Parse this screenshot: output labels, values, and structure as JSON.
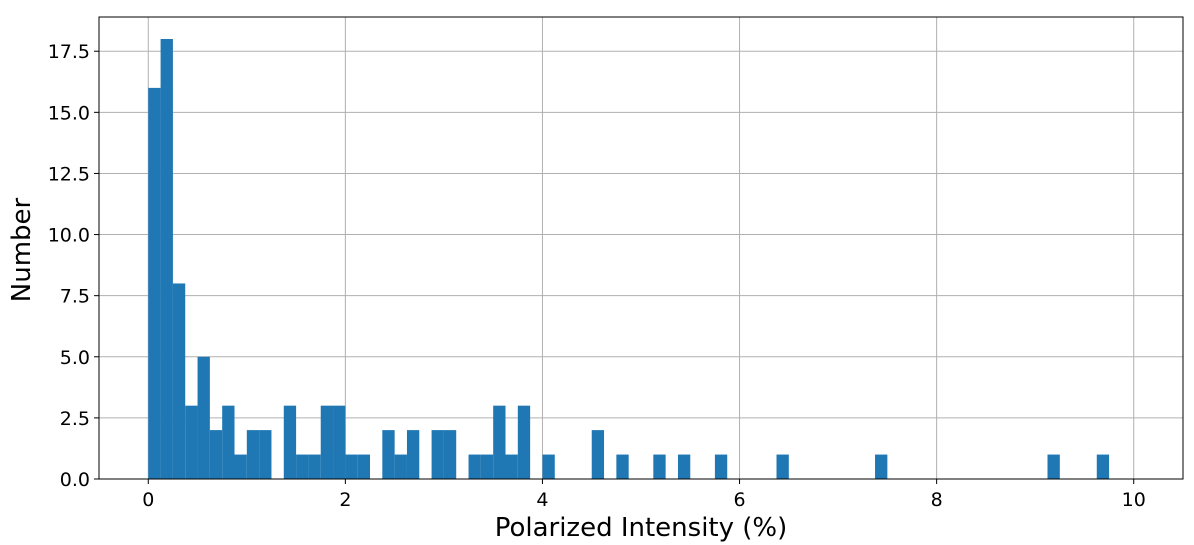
{
  "chart_data": {
    "type": "histogram",
    "xlabel": "Polarized Intensity (%)",
    "ylabel": "Number",
    "color": "#1f77b4",
    "grid": true,
    "bins": [
      0,
      0.125,
      0.25,
      0.375,
      0.5,
      0.625,
      0.75,
      0.875,
      1,
      1.125,
      1.25,
      1.375,
      1.5,
      1.625,
      1.75,
      1.875,
      2,
      2.125,
      2.25,
      2.375,
      2.5,
      2.625,
      2.75,
      2.875,
      3,
      3.125,
      3.25,
      3.375,
      3.5,
      3.625,
      3.75,
      3.875,
      4,
      4.125,
      4.25,
      4.375,
      4.5,
      4.625,
      4.75,
      4.875,
      5,
      5.125,
      5.25,
      5.375,
      5.5,
      5.625,
      5.75,
      5.875,
      6,
      6.125,
      6.25,
      6.375,
      6.5,
      6.625,
      6.75,
      6.875,
      7,
      7.125,
      7.25,
      7.375,
      7.5,
      7.625,
      7.75,
      7.875,
      8,
      8.125,
      8.25,
      8.375,
      8.5,
      8.625,
      8.75,
      8.875,
      9,
      9.125,
      9.25,
      9.375,
      9.5,
      9.625,
      9.75,
      9.875,
      10
    ],
    "values": [
      16,
      18,
      8,
      3,
      5,
      2,
      3,
      1,
      2,
      2,
      0,
      3,
      1,
      1,
      3,
      3,
      1,
      1,
      0,
      2,
      1,
      2,
      0,
      2,
      2,
      0,
      1,
      1,
      3,
      1,
      3,
      0,
      1,
      0,
      0,
      0,
      2,
      0,
      1,
      0,
      0,
      1,
      0,
      1,
      0,
      0,
      1,
      0,
      0,
      0,
      0,
      1,
      0,
      0,
      0,
      0,
      0,
      0,
      0,
      1,
      0,
      0,
      0,
      0,
      0,
      0,
      0,
      0,
      0,
      0,
      0,
      0,
      0,
      1,
      0,
      0,
      0,
      1,
      0,
      0
    ],
    "xlim": [
      -0.5,
      10.5
    ],
    "xticks": [
      0,
      2,
      4,
      6,
      8,
      10
    ],
    "ylim": [
      0,
      18.9
    ],
    "yticks": [
      {
        "value": 0,
        "label": "0.0"
      },
      2.5,
      {
        "value": 5,
        "label": "5.0"
      },
      7.5,
      {
        "value": 10,
        "label": "10.0"
      },
      12.5,
      {
        "value": 15,
        "label": "15.0"
      },
      17.5
    ]
  }
}
